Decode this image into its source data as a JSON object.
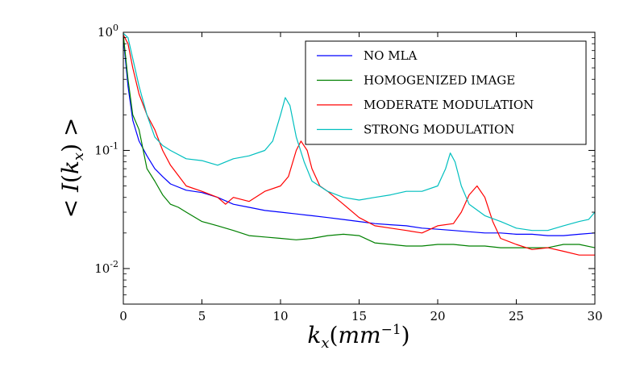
{
  "chart_data": {
    "type": "line",
    "title": "",
    "xlabel": "k_x(mm^-1)",
    "ylabel": "< I(k_x) >",
    "xlim": [
      0,
      30
    ],
    "ylim": [
      0.005,
      1.0
    ],
    "yscale": "log",
    "grid": false,
    "legend_position": "top-right",
    "x_ticks": [
      0,
      5,
      10,
      15,
      20,
      25,
      30
    ],
    "x_tick_labels": [
      "0",
      "5",
      "10",
      "15",
      "20",
      "25",
      "30"
    ],
    "y_ticks": [
      1.0,
      0.1,
      0.01
    ],
    "y_tick_labels": [
      {
        "base": "10",
        "exp": "0"
      },
      {
        "base": "10",
        "exp": "-1"
      },
      {
        "base": "10",
        "exp": "-2"
      }
    ],
    "series": [
      {
        "name": "NO MLA",
        "color": "#0000ff",
        "x": [
          0,
          0.3,
          0.6,
          1,
          1.5,
          2,
          2.5,
          3,
          4,
          5,
          6,
          7,
          8,
          9,
          10,
          11,
          12,
          13,
          14,
          15,
          16,
          17,
          18,
          19,
          20,
          21,
          22,
          23,
          24,
          25,
          26,
          27,
          28,
          29,
          30
        ],
        "y": [
          0.9,
          0.35,
          0.18,
          0.12,
          0.09,
          0.07,
          0.06,
          0.052,
          0.046,
          0.044,
          0.04,
          0.035,
          0.033,
          0.031,
          0.03,
          0.029,
          0.028,
          0.027,
          0.026,
          0.025,
          0.024,
          0.0235,
          0.023,
          0.022,
          0.0215,
          0.021,
          0.0205,
          0.02,
          0.02,
          0.0195,
          0.0195,
          0.019,
          0.019,
          0.0195,
          0.02
        ]
      },
      {
        "name": "HOMOGENIZED IMAGE",
        "color": "#008000",
        "x": [
          0,
          0.3,
          0.6,
          1,
          1.5,
          2,
          2.5,
          3,
          3.5,
          4,
          5,
          6,
          7,
          8,
          9,
          10,
          11,
          12,
          13,
          14,
          15,
          16,
          17,
          18,
          19,
          20,
          21,
          22,
          23,
          24,
          25,
          26,
          27,
          28,
          29,
          30
        ],
        "y": [
          0.95,
          0.4,
          0.2,
          0.15,
          0.07,
          0.055,
          0.042,
          0.035,
          0.033,
          0.03,
          0.025,
          0.023,
          0.021,
          0.019,
          0.0185,
          0.018,
          0.0175,
          0.018,
          0.019,
          0.0195,
          0.019,
          0.0165,
          0.016,
          0.0155,
          0.0155,
          0.016,
          0.016,
          0.0155,
          0.0155,
          0.015,
          0.015,
          0.015,
          0.015,
          0.016,
          0.016,
          0.015
        ]
      },
      {
        "name": "MODERATE MODULATION",
        "color": "#ff0000",
        "x": [
          0,
          0.3,
          0.6,
          1,
          1.5,
          2,
          2.5,
          3,
          4,
          5,
          6,
          6.5,
          7,
          8,
          9,
          10,
          10.5,
          11,
          11.3,
          11.7,
          12,
          12.5,
          13,
          14,
          15,
          16,
          17,
          18,
          19,
          20,
          21,
          21.5,
          22,
          22.5,
          23,
          23.5,
          24,
          25,
          26,
          27,
          28,
          29,
          30
        ],
        "y": [
          0.95,
          0.8,
          0.5,
          0.3,
          0.2,
          0.15,
          0.1,
          0.075,
          0.05,
          0.045,
          0.04,
          0.035,
          0.04,
          0.037,
          0.045,
          0.05,
          0.06,
          0.1,
          0.12,
          0.1,
          0.07,
          0.05,
          0.045,
          0.035,
          0.027,
          0.023,
          0.022,
          0.021,
          0.02,
          0.023,
          0.024,
          0.03,
          0.042,
          0.05,
          0.04,
          0.025,
          0.018,
          0.016,
          0.0145,
          0.015,
          0.014,
          0.013,
          0.013
        ]
      },
      {
        "name": "STRONG MODULATION",
        "color": "#00bfbf",
        "x": [
          0,
          0.3,
          0.6,
          1,
          1.5,
          2,
          2.5,
          3,
          4,
          5,
          6,
          7,
          8,
          9,
          9.5,
          10,
          10.3,
          10.6,
          11,
          11.5,
          12,
          13,
          14,
          15,
          16,
          17,
          18,
          19,
          20,
          20.5,
          20.8,
          21.1,
          21.5,
          22,
          23,
          24,
          25,
          26,
          27,
          28,
          29,
          29.6,
          30
        ],
        "y": [
          0.98,
          0.9,
          0.6,
          0.35,
          0.2,
          0.13,
          0.11,
          0.1,
          0.085,
          0.082,
          0.075,
          0.085,
          0.09,
          0.1,
          0.12,
          0.2,
          0.28,
          0.24,
          0.13,
          0.08,
          0.055,
          0.045,
          0.04,
          0.038,
          0.04,
          0.042,
          0.045,
          0.045,
          0.05,
          0.07,
          0.095,
          0.08,
          0.05,
          0.035,
          0.028,
          0.025,
          0.022,
          0.021,
          0.021,
          0.023,
          0.025,
          0.026,
          0.03
        ]
      }
    ]
  }
}
